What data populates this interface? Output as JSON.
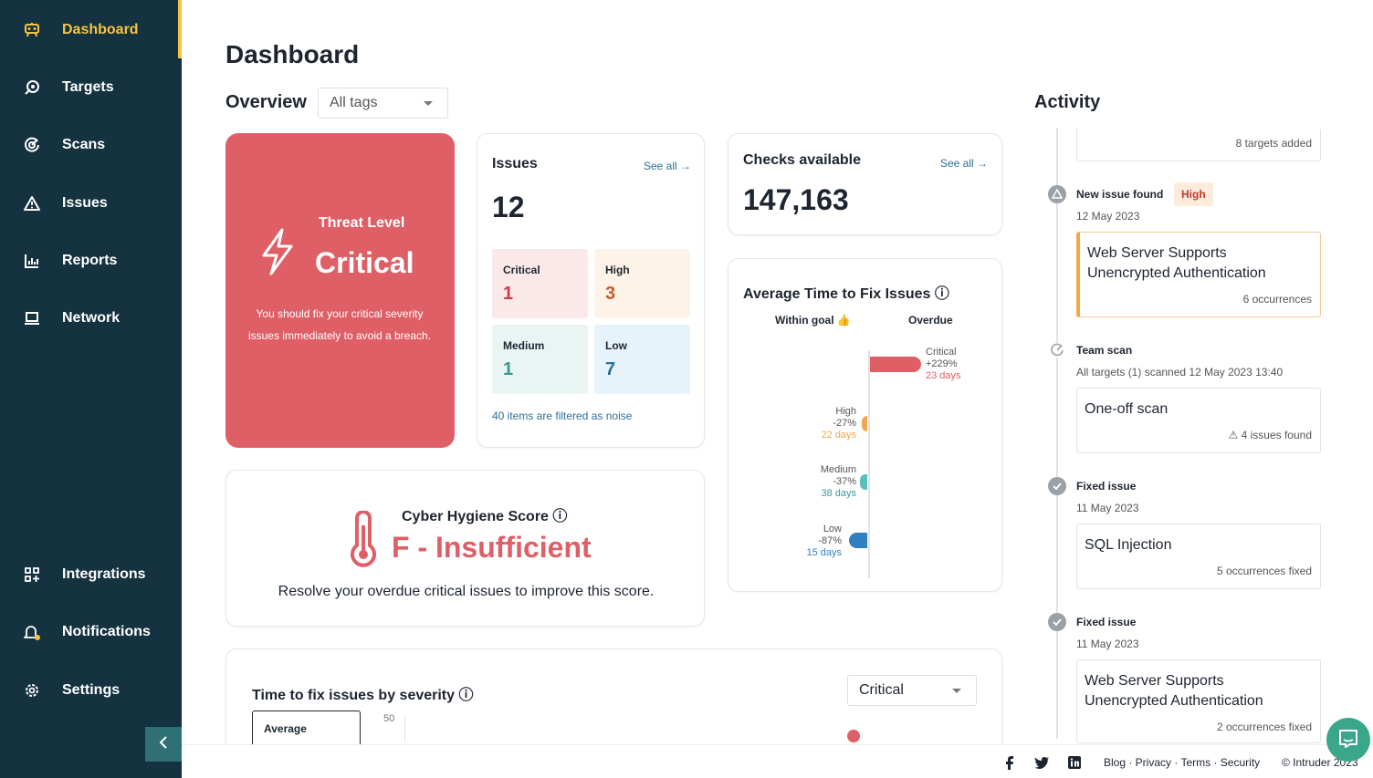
{
  "sidebar": {
    "items": [
      {
        "label": "Dashboard",
        "icon": "dashboard-icon",
        "active": true
      },
      {
        "label": "Targets",
        "icon": "targets-icon"
      },
      {
        "label": "Scans",
        "icon": "scans-icon"
      },
      {
        "label": "Issues",
        "icon": "warning-triangle-icon"
      },
      {
        "label": "Reports",
        "icon": "bar-chart-icon"
      },
      {
        "label": "Network",
        "icon": "laptop-icon"
      }
    ],
    "bottom_items": [
      {
        "label": "Integrations",
        "icon": "grid-plus-icon"
      },
      {
        "label": "Notifications",
        "icon": "bell-icon"
      },
      {
        "label": "Settings",
        "icon": "gear-icon"
      }
    ],
    "colors": {
      "bg": "#14323f",
      "active": "#f5c542"
    }
  },
  "main": {
    "title": "Dashboard",
    "overview_label": "Overview",
    "tag_select_value": "All tags"
  },
  "threat": {
    "label": "Threat Level",
    "value": "Critical",
    "description": "You should fix your critical severity issues immediately to avoid a breach.",
    "color": "#de5f66"
  },
  "issues": {
    "title": "Issues",
    "see_all": "See all →",
    "total": "12",
    "severities": [
      {
        "name": "Critical",
        "count": "1",
        "bg": "#fbe9ea",
        "color": "#c94049"
      },
      {
        "name": "High",
        "count": "3",
        "bg": "#fdf3e8",
        "color": "#c85a26"
      },
      {
        "name": "Medium",
        "count": "1",
        "bg": "#eaf5f3",
        "color": "#3a9a8e"
      },
      {
        "name": "Low",
        "count": "7",
        "bg": "#e6f3fb",
        "color": "#2b6f9a"
      }
    ],
    "noise_text": "40 items are filtered as noise"
  },
  "checks": {
    "title": "Checks available",
    "see_all": "See all →",
    "value": "147,163"
  },
  "avg_time": {
    "title": "Average Time to Fix Issues ⓘ",
    "within_goal": "Within goal 👍",
    "overdue": "Overdue",
    "rows": [
      {
        "name": "Critical",
        "pct": "+229%",
        "days": "23 days",
        "side": "overdue",
        "pct_value": 229,
        "color": "#de5f66"
      },
      {
        "name": "High",
        "pct": "-27%",
        "days": "22 days",
        "side": "within",
        "pct_value": 27,
        "color": "#f0a84a"
      },
      {
        "name": "Medium",
        "pct": "-37%",
        "days": "38 days",
        "side": "within",
        "pct_value": 37,
        "color": "#5bbfbf"
      },
      {
        "name": "Low",
        "pct": "-87%",
        "days": "15 days",
        "side": "within",
        "pct_value": 87,
        "color": "#2f7fc1"
      }
    ]
  },
  "hygiene": {
    "title": "Cyber Hygiene Score ⓘ",
    "grade": "F - Insufficient",
    "description": "Resolve your overdue critical issues to improve this score."
  },
  "time_to_fix": {
    "title": "Time to fix issues by severity ⓘ",
    "select_value": "Critical",
    "tab_label": "Average",
    "axis_value": "50"
  },
  "activity": {
    "title": "Activity",
    "top_card_meta": "8 targets added",
    "events": [
      {
        "head": "New issue found",
        "badge": "High",
        "date": "12 May 2023",
        "card_title": "Web Server Supports Unencrypted Authentication",
        "card_meta": "6 occurrences"
      },
      {
        "head": "Team scan",
        "date": "All targets (1) scanned 12 May 2023 13:40",
        "card_title": "One-off scan",
        "card_meta": "⚠ 4 issues found"
      },
      {
        "head": "Fixed issue",
        "date": "11 May 2023",
        "card_title": "SQL Injection",
        "card_meta": "5 occurrences fixed"
      },
      {
        "head": "Fixed issue",
        "date": "11 May 2023",
        "card_title": "Web Server Supports Unencrypted Authentication",
        "card_meta": "2 occurrences fixed"
      }
    ]
  },
  "footer": {
    "links": "Blog · Privacy · Terms · Security",
    "copyright": "© Intruder 2023"
  }
}
